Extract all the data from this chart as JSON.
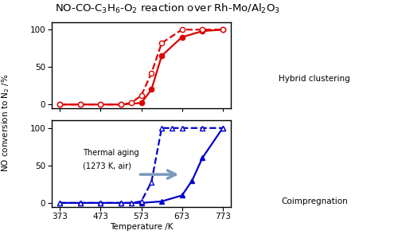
{
  "title": "NO-CO-C$_3$H$_6$-O$_2$ reaction over Rh-Mo/Al$_2$O$_3$",
  "ylabel": "NO conversion to N$_2$ /%",
  "xlabel": "Temperature /K",
  "xticks": [
    373,
    473,
    573,
    673,
    773
  ],
  "ylim": [
    -5,
    110
  ],
  "red_solid_x": [
    373,
    423,
    473,
    523,
    573,
    598,
    623,
    673,
    723,
    773
  ],
  "red_solid_y": [
    0,
    0,
    0,
    0,
    2,
    20,
    65,
    90,
    98,
    100
  ],
  "red_dashed_x": [
    373,
    423,
    473,
    523,
    548,
    573,
    598,
    623,
    673,
    723,
    773
  ],
  "red_dashed_y": [
    0,
    0,
    0,
    0,
    2,
    12,
    42,
    82,
    100,
    100,
    100
  ],
  "blue_solid_x": [
    373,
    423,
    473,
    523,
    573,
    623,
    673,
    698,
    723,
    773
  ],
  "blue_solid_y": [
    0,
    0,
    0,
    0,
    0,
    2,
    10,
    30,
    60,
    100
  ],
  "blue_dashed_x": [
    373,
    423,
    473,
    523,
    548,
    573,
    598,
    623,
    648,
    673,
    723,
    773
  ],
  "blue_dashed_y": [
    0,
    0,
    0,
    0,
    0,
    2,
    28,
    100,
    100,
    100,
    100,
    100
  ],
  "red_color": "#dd0000",
  "blue_color": "#0000cc",
  "arrow_text_line1": "Thermal aging",
  "arrow_text_line2": "(1273 K, air)",
  "label_fontsize": 7.5,
  "title_fontsize": 9.5,
  "tick_fontsize": 7.5,
  "hybrid_label": "Hybrid clustering",
  "coimp_label": "Coimpregnation"
}
